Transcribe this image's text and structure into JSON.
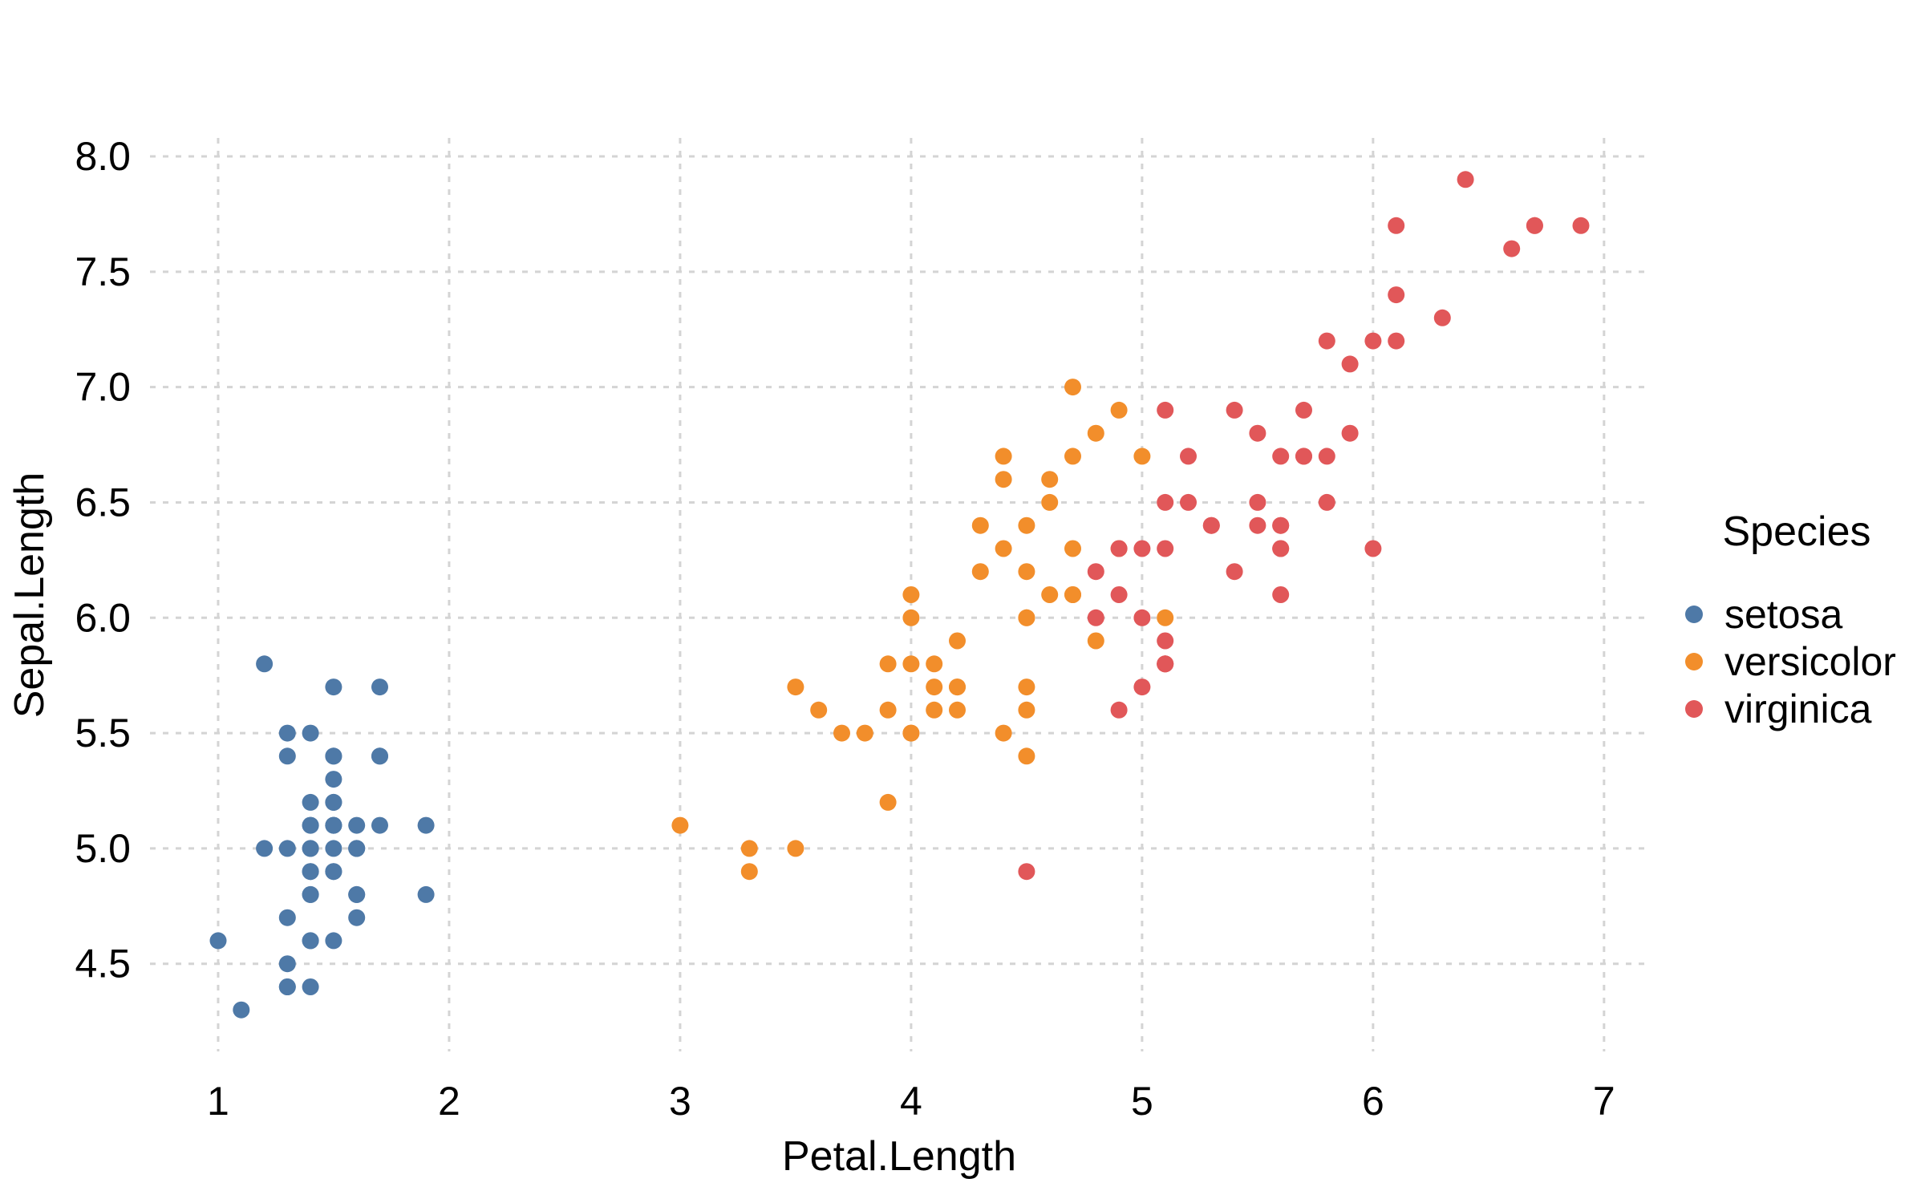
{
  "chart_data": {
    "type": "scatter",
    "title": "",
    "xlabel": "Petal.Length",
    "ylabel": "Sepal.Length",
    "xlim": [
      0.705,
      7.195
    ],
    "ylim": [
      4.12,
      8.08
    ],
    "x_ticks": [
      1,
      2,
      3,
      4,
      5,
      6,
      7
    ],
    "y_ticks": [
      4.5,
      5.0,
      5.5,
      6.0,
      6.5,
      7.0,
      7.5,
      8.0
    ],
    "grid": "dashed major gridlines, no axis lines, white background",
    "colors": {
      "grid": "#d4d4d4",
      "text": "#000000",
      "background": "#ffffff"
    },
    "legend": {
      "title": "Species",
      "position": "right"
    },
    "series": [
      {
        "name": "setosa",
        "color": "#4e79a7",
        "points": [
          [
            1.4,
            5.1
          ],
          [
            1.4,
            4.9
          ],
          [
            1.3,
            4.7
          ],
          [
            1.5,
            4.6
          ],
          [
            1.4,
            5.0
          ],
          [
            1.7,
            5.4
          ],
          [
            1.4,
            4.6
          ],
          [
            1.5,
            5.0
          ],
          [
            1.4,
            4.4
          ],
          [
            1.5,
            4.9
          ],
          [
            1.5,
            5.4
          ],
          [
            1.6,
            4.8
          ],
          [
            1.4,
            4.8
          ],
          [
            1.1,
            4.3
          ],
          [
            1.2,
            5.8
          ],
          [
            1.5,
            5.7
          ],
          [
            1.3,
            5.4
          ],
          [
            1.4,
            5.1
          ],
          [
            1.7,
            5.7
          ],
          [
            1.5,
            5.1
          ],
          [
            1.7,
            5.4
          ],
          [
            1.5,
            5.1
          ],
          [
            1.0,
            4.6
          ],
          [
            1.7,
            5.1
          ],
          [
            1.9,
            4.8
          ],
          [
            1.6,
            5.0
          ],
          [
            1.6,
            5.0
          ],
          [
            1.5,
            5.2
          ],
          [
            1.4,
            5.2
          ],
          [
            1.6,
            4.7
          ],
          [
            1.6,
            4.8
          ],
          [
            1.5,
            5.4
          ],
          [
            1.5,
            5.2
          ],
          [
            1.4,
            5.5
          ],
          [
            1.5,
            4.9
          ],
          [
            1.2,
            5.0
          ],
          [
            1.3,
            5.5
          ],
          [
            1.4,
            4.9
          ],
          [
            1.3,
            4.4
          ],
          [
            1.5,
            5.1
          ],
          [
            1.3,
            5.0
          ],
          [
            1.3,
            4.5
          ],
          [
            1.3,
            4.4
          ],
          [
            1.6,
            5.0
          ],
          [
            1.9,
            5.1
          ],
          [
            1.4,
            4.8
          ],
          [
            1.6,
            5.1
          ],
          [
            1.4,
            4.6
          ],
          [
            1.5,
            5.3
          ],
          [
            1.4,
            5.0
          ]
        ]
      },
      {
        "name": "versicolor",
        "color": "#f28e2b",
        "points": [
          [
            4.7,
            7.0
          ],
          [
            4.5,
            6.4
          ],
          [
            4.9,
            6.9
          ],
          [
            4.0,
            5.5
          ],
          [
            4.6,
            6.5
          ],
          [
            4.5,
            5.7
          ],
          [
            4.7,
            6.3
          ],
          [
            3.3,
            4.9
          ],
          [
            4.6,
            6.6
          ],
          [
            3.9,
            5.2
          ],
          [
            3.5,
            5.0
          ],
          [
            4.2,
            5.9
          ],
          [
            4.0,
            6.0
          ],
          [
            4.7,
            6.1
          ],
          [
            3.6,
            5.6
          ],
          [
            4.4,
            6.7
          ],
          [
            4.5,
            5.6
          ],
          [
            4.1,
            5.8
          ],
          [
            4.5,
            6.2
          ],
          [
            3.9,
            5.6
          ],
          [
            4.8,
            5.9
          ],
          [
            4.0,
            6.1
          ],
          [
            4.9,
            6.3
          ],
          [
            4.7,
            6.1
          ],
          [
            4.3,
            6.4
          ],
          [
            4.4,
            6.6
          ],
          [
            4.8,
            6.8
          ],
          [
            5.0,
            6.7
          ],
          [
            4.5,
            6.0
          ],
          [
            3.5,
            5.7
          ],
          [
            3.8,
            5.5
          ],
          [
            3.7,
            5.5
          ],
          [
            3.9,
            5.8
          ],
          [
            5.1,
            6.0
          ],
          [
            4.5,
            5.4
          ],
          [
            4.5,
            6.0
          ],
          [
            4.7,
            6.7
          ],
          [
            4.4,
            6.3
          ],
          [
            4.1,
            5.6
          ],
          [
            4.0,
            5.5
          ],
          [
            4.4,
            5.5
          ],
          [
            4.6,
            6.1
          ],
          [
            4.0,
            5.8
          ],
          [
            3.3,
            5.0
          ],
          [
            4.2,
            5.6
          ],
          [
            4.2,
            5.7
          ],
          [
            4.2,
            5.7
          ],
          [
            4.3,
            6.2
          ],
          [
            3.0,
            5.1
          ],
          [
            4.1,
            5.7
          ]
        ]
      },
      {
        "name": "virginica",
        "color": "#e15759",
        "points": [
          [
            6.0,
            6.3
          ],
          [
            5.1,
            5.8
          ],
          [
            5.9,
            7.1
          ],
          [
            5.6,
            6.3
          ],
          [
            5.8,
            6.5
          ],
          [
            6.6,
            7.6
          ],
          [
            4.5,
            4.9
          ],
          [
            6.3,
            7.3
          ],
          [
            5.8,
            6.7
          ],
          [
            6.1,
            7.2
          ],
          [
            5.1,
            6.5
          ],
          [
            5.3,
            6.4
          ],
          [
            5.5,
            6.8
          ],
          [
            5.0,
            5.7
          ],
          [
            5.1,
            5.8
          ],
          [
            5.3,
            6.4
          ],
          [
            5.5,
            6.5
          ],
          [
            6.7,
            7.7
          ],
          [
            6.9,
            7.7
          ],
          [
            5.0,
            6.0
          ],
          [
            5.7,
            6.9
          ],
          [
            4.9,
            5.6
          ],
          [
            6.7,
            7.7
          ],
          [
            4.9,
            6.3
          ],
          [
            5.7,
            6.7
          ],
          [
            6.0,
            7.2
          ],
          [
            4.8,
            6.2
          ],
          [
            4.9,
            6.1
          ],
          [
            5.6,
            6.4
          ],
          [
            5.8,
            7.2
          ],
          [
            6.1,
            7.4
          ],
          [
            6.4,
            7.9
          ],
          [
            5.6,
            6.4
          ],
          [
            5.1,
            6.3
          ],
          [
            5.6,
            6.1
          ],
          [
            6.1,
            7.7
          ],
          [
            5.6,
            6.3
          ],
          [
            5.5,
            6.4
          ],
          [
            4.8,
            6.0
          ],
          [
            5.4,
            6.9
          ],
          [
            5.6,
            6.7
          ],
          [
            5.1,
            6.9
          ],
          [
            5.1,
            5.8
          ],
          [
            5.9,
            6.8
          ],
          [
            5.7,
            6.7
          ],
          [
            5.2,
            6.7
          ],
          [
            5.0,
            6.3
          ],
          [
            5.2,
            6.5
          ],
          [
            5.4,
            6.2
          ],
          [
            5.1,
            5.9
          ]
        ]
      }
    ]
  }
}
